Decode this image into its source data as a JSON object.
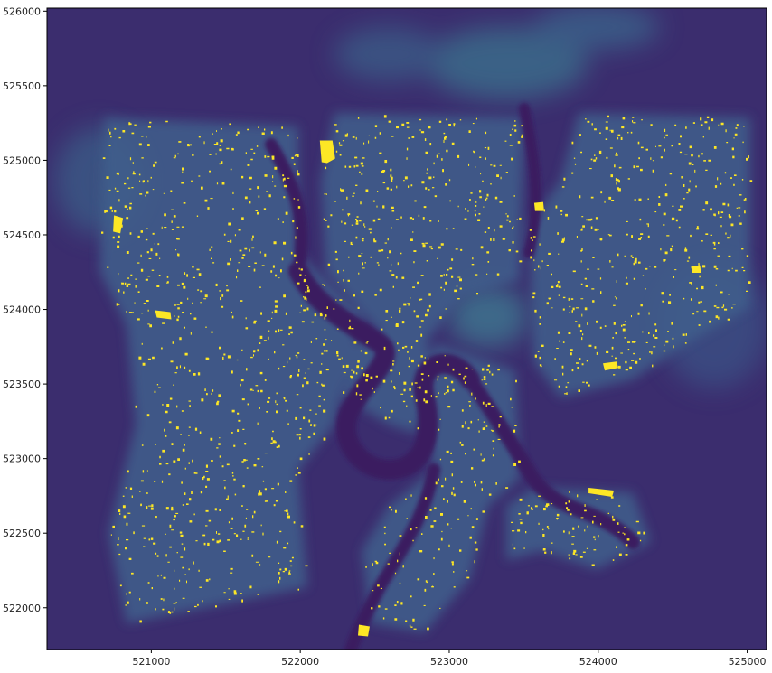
{
  "figure": {
    "background": "#ffffff",
    "colormap": "viridis",
    "raster_colors": {
      "base": "#3b2d6e",
      "river": "#38175a",
      "haze": "#3a8c9a",
      "city": "#3e5f8c",
      "buildings": "#fde725"
    },
    "x_axis": {
      "range": [
        520300,
        525130
      ],
      "ticks": [
        {
          "value": 521000,
          "label": "521000"
        },
        {
          "value": 522000,
          "label": "522000"
        },
        {
          "value": 523000,
          "label": "523000"
        },
        {
          "value": 524000,
          "label": "524000"
        },
        {
          "value": 525000,
          "label": "525000"
        }
      ]
    },
    "y_axis": {
      "range": [
        521720,
        526020
      ],
      "ticks": [
        {
          "value": 526000,
          "label": "526000"
        },
        {
          "value": 525500,
          "label": "525500"
        },
        {
          "value": 525000,
          "label": "525000"
        },
        {
          "value": 524500,
          "label": "524500"
        },
        {
          "value": 524000,
          "label": "524000"
        },
        {
          "value": 523500,
          "label": "523500"
        },
        {
          "value": 523000,
          "label": "523000"
        },
        {
          "value": 522500,
          "label": "522500"
        },
        {
          "value": 522000,
          "label": "522000"
        }
      ]
    },
    "large_features": [
      {
        "type": "yellow-polygon",
        "x": 520780,
        "y": 524570
      },
      {
        "type": "yellow-polygon",
        "x": 521080,
        "y": 523970
      },
      {
        "type": "yellow-polygon",
        "x": 522180,
        "y": 525060
      },
      {
        "type": "yellow-polygon",
        "x": 523600,
        "y": 524690
      },
      {
        "type": "yellow-polygon",
        "x": 524080,
        "y": 523620
      },
      {
        "type": "yellow-polygon",
        "x": 524660,
        "y": 524270
      },
      {
        "type": "yellow-polygon",
        "x": 524020,
        "y": 522780
      },
      {
        "type": "yellow-polygon",
        "x": 522430,
        "y": 521850
      }
    ]
  }
}
